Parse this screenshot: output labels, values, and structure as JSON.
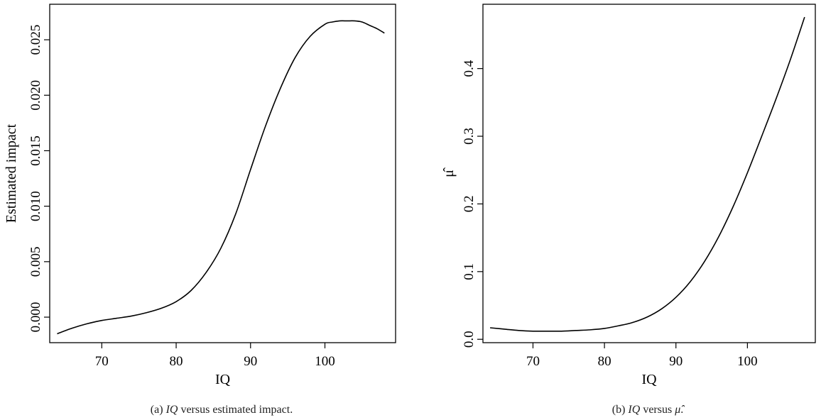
{
  "chart_data": [
    {
      "type": "line",
      "title": "",
      "xlabel": "IQ",
      "ylabel": "Estimated impact",
      "xlim": [
        63,
        109.5
      ],
      "ylim": [
        -0.0023,
        0.0282
      ],
      "xticks": [
        70,
        80,
        90,
        100
      ],
      "yticks": [
        0.0,
        0.005,
        0.01,
        0.015,
        0.02,
        0.025
      ],
      "ytick_labels": [
        "0.000",
        "0.005",
        "0.010",
        "0.015",
        "0.020",
        "0.025"
      ],
      "caption": {
        "prefix": "(a) ",
        "italic": "IQ",
        "suffix": " versus estimated impact."
      },
      "series": [
        {
          "x": [
            64,
            66,
            68,
            70,
            72,
            74,
            76,
            78,
            80,
            82,
            84,
            86,
            88,
            90,
            92,
            94,
            96,
            98,
            100,
            101,
            102,
            103,
            104,
            105,
            106,
            107,
            108
          ],
          "values": [
            -0.0015,
            -0.001,
            -0.0006,
            -0.0003,
            -0.0001,
            0.0001,
            0.0004,
            0.0008,
            0.0014,
            0.0024,
            0.004,
            0.0062,
            0.0093,
            0.0133,
            0.0172,
            0.0206,
            0.0234,
            0.0253,
            0.0264,
            0.0266,
            0.0267,
            0.0267,
            0.0267,
            0.0266,
            0.0263,
            0.026,
            0.0256
          ]
        }
      ]
    },
    {
      "type": "line",
      "title": "",
      "xlabel": "IQ",
      "ylabel": "μ̂",
      "xlim": [
        63,
        109.5
      ],
      "ylim": [
        -0.005,
        0.495
      ],
      "xticks": [
        70,
        80,
        90,
        100
      ],
      "yticks": [
        0.0,
        0.1,
        0.2,
        0.3,
        0.4
      ],
      "ytick_labels": [
        "0.0",
        "0.1",
        "0.2",
        "0.3",
        "0.4"
      ],
      "caption": {
        "prefix": "(b) ",
        "italic": "IQ",
        "suffix": " versus ",
        "tail_italic": "μ̂",
        "end": "."
      },
      "series": [
        {
          "x": [
            64,
            66,
            68,
            70,
            72,
            74,
            76,
            78,
            80,
            82,
            84,
            86,
            88,
            90,
            92,
            94,
            96,
            98,
            100,
            102,
            104,
            106,
            108
          ],
          "values": [
            0.017,
            0.015,
            0.013,
            0.012,
            0.012,
            0.012,
            0.013,
            0.014,
            0.016,
            0.02,
            0.025,
            0.033,
            0.045,
            0.062,
            0.085,
            0.115,
            0.152,
            0.196,
            0.246,
            0.3,
            0.355,
            0.413,
            0.476
          ]
        }
      ]
    }
  ]
}
